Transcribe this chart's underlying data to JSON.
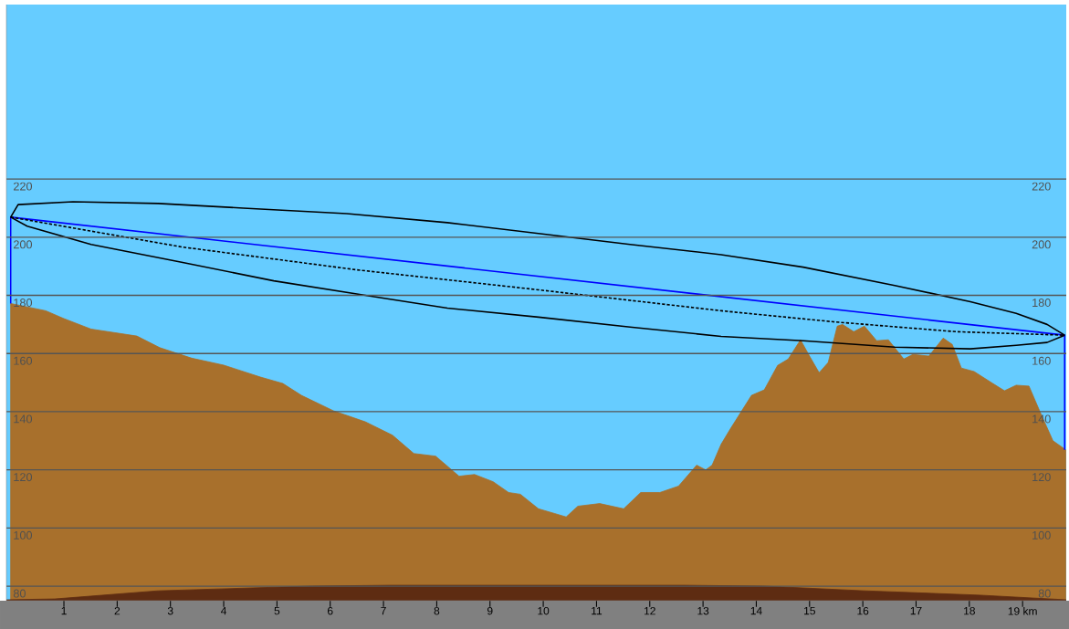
{
  "chart_data": {
    "type": "line",
    "xlim": [
      -0.08,
      19.82
    ],
    "ylim": [
      75,
      280
    ],
    "xticks": [
      1,
      2,
      3,
      4,
      5,
      6,
      7,
      8,
      9,
      10,
      11,
      12,
      13,
      14,
      15,
      16,
      17,
      18,
      {
        "value": 19,
        "label": "19 km"
      }
    ],
    "yticks": [
      80,
      100,
      120,
      140,
      160,
      180,
      200,
      220
    ],
    "y2lim": [
      75,
      280
    ],
    "y2ticks": [
      80,
      100,
      120,
      140,
      160,
      180,
      200,
      220
    ],
    "grid": "y",
    "series": [
      {
        "type": "area",
        "color": "#a8702c",
        "x": [
          0,
          0.66,
          1.0,
          1.51,
          2.37,
          2.8,
          3.4,
          4.0,
          4.69,
          5.11,
          5.46,
          6.06,
          6.66,
          7.17,
          7.57,
          7.98,
          8.42,
          8.71,
          9.06,
          9.35,
          9.57,
          9.91,
          10.21,
          10.43,
          10.65,
          11.06,
          11.51,
          11.83,
          12.19,
          12.54,
          12.88,
          13.05,
          13.17,
          13.34,
          13.51,
          13.91,
          14.15,
          14.4,
          14.6,
          14.83,
          15.0,
          15.18,
          15.35,
          15.52,
          15.62,
          15.83,
          16.03,
          16.26,
          16.48,
          16.77,
          16.94,
          17.24,
          17.51,
          17.68,
          17.85,
          18.09,
          18.44,
          18.66,
          18.88,
          19.12,
          19.34,
          19.57,
          19.81
        ],
        "values": [
          177.2,
          174.7,
          172,
          168.4,
          166,
          162,
          158.4,
          156,
          151.9,
          149.7,
          145.6,
          140.3,
          136.5,
          131.9,
          125.6,
          124.7,
          117.8,
          118.4,
          115.9,
          112.2,
          111.6,
          106.6,
          105,
          103.8,
          107.5,
          108.4,
          106.6,
          112.2,
          112.2,
          114.4,
          121.6,
          120,
          121.6,
          128.8,
          134,
          145.6,
          147.5,
          155.9,
          158.1,
          164.7,
          159.1,
          153.4,
          156.9,
          169.4,
          170,
          167.5,
          169.4,
          164.4,
          164.7,
          158.1,
          159.7,
          159.1,
          165.3,
          163.1,
          155,
          153.8,
          149.7,
          147.2,
          149.1,
          148.8,
          139.4,
          130,
          126.9
        ]
      },
      {
        "type": "area",
        "color": "#5e2c12",
        "x": [
          -0.08,
          0.83,
          2.77,
          5.63,
          7.12,
          12.66,
          14.15,
          16.03,
          18.2,
          19.82
        ],
        "values": [
          75.3,
          75.6,
          78.4,
          80,
          80.3,
          80.3,
          80,
          78.4,
          76.9,
          75.3
        ]
      },
      {
        "color": "#0000ff",
        "x": [
          0,
          0,
          19.79,
          19.79
        ],
        "values": [
          177.2,
          206.9,
          166.3,
          126.9
        ]
      },
      {
        "color": "#000000",
        "x": [
          0,
          0.14,
          1.17,
          2.77,
          4.37,
          6.31,
          8.2,
          9.91,
          11.63,
          13.34,
          14.88,
          16.6,
          18.02,
          18.88,
          19.46,
          19.79
        ],
        "values": [
          206.9,
          211.2,
          212.2,
          211.6,
          210,
          208.1,
          205,
          201.3,
          197.5,
          194,
          189.7,
          183.4,
          177.8,
          173.8,
          170,
          166.3
        ]
      },
      {
        "color": "#000000",
        "x": [
          0,
          0.31,
          1.51,
          3.23,
          4.94,
          6.66,
          8.2,
          9.91,
          11.63,
          13.34,
          14.88,
          16.6,
          18.02,
          18.88,
          19.46,
          19.79
        ],
        "values": [
          206.9,
          203.8,
          197.5,
          191.3,
          185,
          180,
          175.6,
          172.5,
          169.1,
          165.9,
          164.4,
          162.2,
          161.6,
          162.8,
          163.8,
          166.3
        ]
      },
      {
        "color": "#000000",
        "line_style": "dashed",
        "x": [
          0,
          3.23,
          6.49,
          9.91,
          13.34,
          15.45,
          17.75,
          19.79
        ],
        "values": [
          206.9,
          196.6,
          188.8,
          181.9,
          174.7,
          170.9,
          167.5,
          166.3
        ]
      }
    ]
  }
}
